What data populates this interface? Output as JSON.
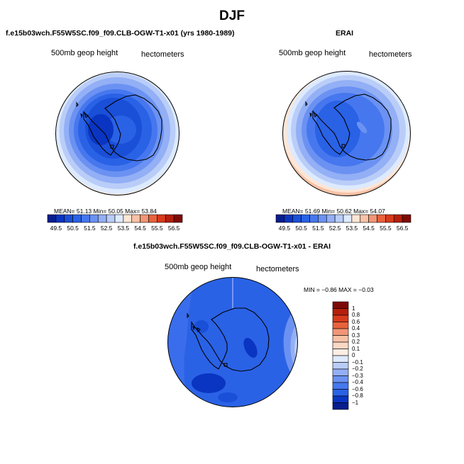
{
  "page": {
    "title": "DJF"
  },
  "chart_data": [
    {
      "type": "heatmap",
      "subtype": "polar-stereographic contour map (south pole)",
      "title": "f.e15b03wch.F55W5SC.f09_f09.CLB-OGW-T1-x01 (yrs 1980-1989)",
      "left_label": "500mb geop height",
      "right_label": "hectometers",
      "stats": {
        "mean": "51.13",
        "min": "50.05",
        "max": "53.84",
        "text": "MEAN=   51.13   Min=    50.05   Max=    53.84"
      },
      "colorbar": {
        "ticks": [
          "49.5",
          "50.5",
          "51.5",
          "52.5",
          "53.5",
          "54.5",
          "55.5",
          "56.5"
        ],
        "colors": [
          "#081d8e",
          "#0a35c2",
          "#1a4fd8",
          "#2a62e6",
          "#4677ee",
          "#6b92f2",
          "#93aff5",
          "#b9cdf8",
          "#ddeaff",
          "#fde6d6",
          "#f8c2a6",
          "#f29576",
          "#e8623c",
          "#d83a1c",
          "#b51e0b",
          "#7e0a05"
        ]
      }
    },
    {
      "type": "heatmap",
      "subtype": "polar-stereographic contour map (south pole)",
      "title": "ERAI",
      "left_label": "500mb geop height",
      "right_label": "hectometers",
      "stats": {
        "mean": "51.69",
        "min": "50.62",
        "max": "54.07",
        "text": "MEAN=   51.69   Min=    50.62   Max=    54.07"
      },
      "colorbar": {
        "ticks": [
          "49.5",
          "50.5",
          "51.5",
          "52.5",
          "53.5",
          "54.5",
          "55.5",
          "56.5"
        ],
        "colors": [
          "#081d8e",
          "#0a35c2",
          "#1a4fd8",
          "#2a62e6",
          "#4677ee",
          "#6b92f2",
          "#93aff5",
          "#b9cdf8",
          "#ddeaff",
          "#fde6d6",
          "#f8c2a6",
          "#f29576",
          "#e8623c",
          "#d83a1c",
          "#b51e0b",
          "#7e0a05"
        ]
      }
    },
    {
      "type": "heatmap",
      "subtype": "polar-stereographic contour map (south pole), difference",
      "title": "f.e15b03wch.F55W5SC.f09_f09.CLB-OGW-T1-x01 - ERAI",
      "left_label": "500mb geop height",
      "right_label": "hectometers",
      "stats": {
        "min": "-0.86",
        "max": "-0.03",
        "text": "MIN =   −0.86  MAX =   −0.03"
      },
      "colorbar": {
        "ticks": [
          "1",
          "0.8",
          "0.6",
          "0.4",
          "0.3",
          "0.2",
          "0.1",
          "0",
          "−0.1",
          "−0.2",
          "−0.3",
          "−0.4",
          "−0.6",
          "−0.8",
          "−1"
        ],
        "colors": [
          "#7e0a05",
          "#b51e0b",
          "#d83a1c",
          "#e8623c",
          "#f29576",
          "#f8c2a6",
          "#fbd7c4",
          "#fdeee5",
          "#ddeaff",
          "#b9cdf8",
          "#93aff5",
          "#6b92f2",
          "#4677ee",
          "#2a62e6",
          "#0a35c2",
          "#081d8e"
        ]
      }
    }
  ]
}
